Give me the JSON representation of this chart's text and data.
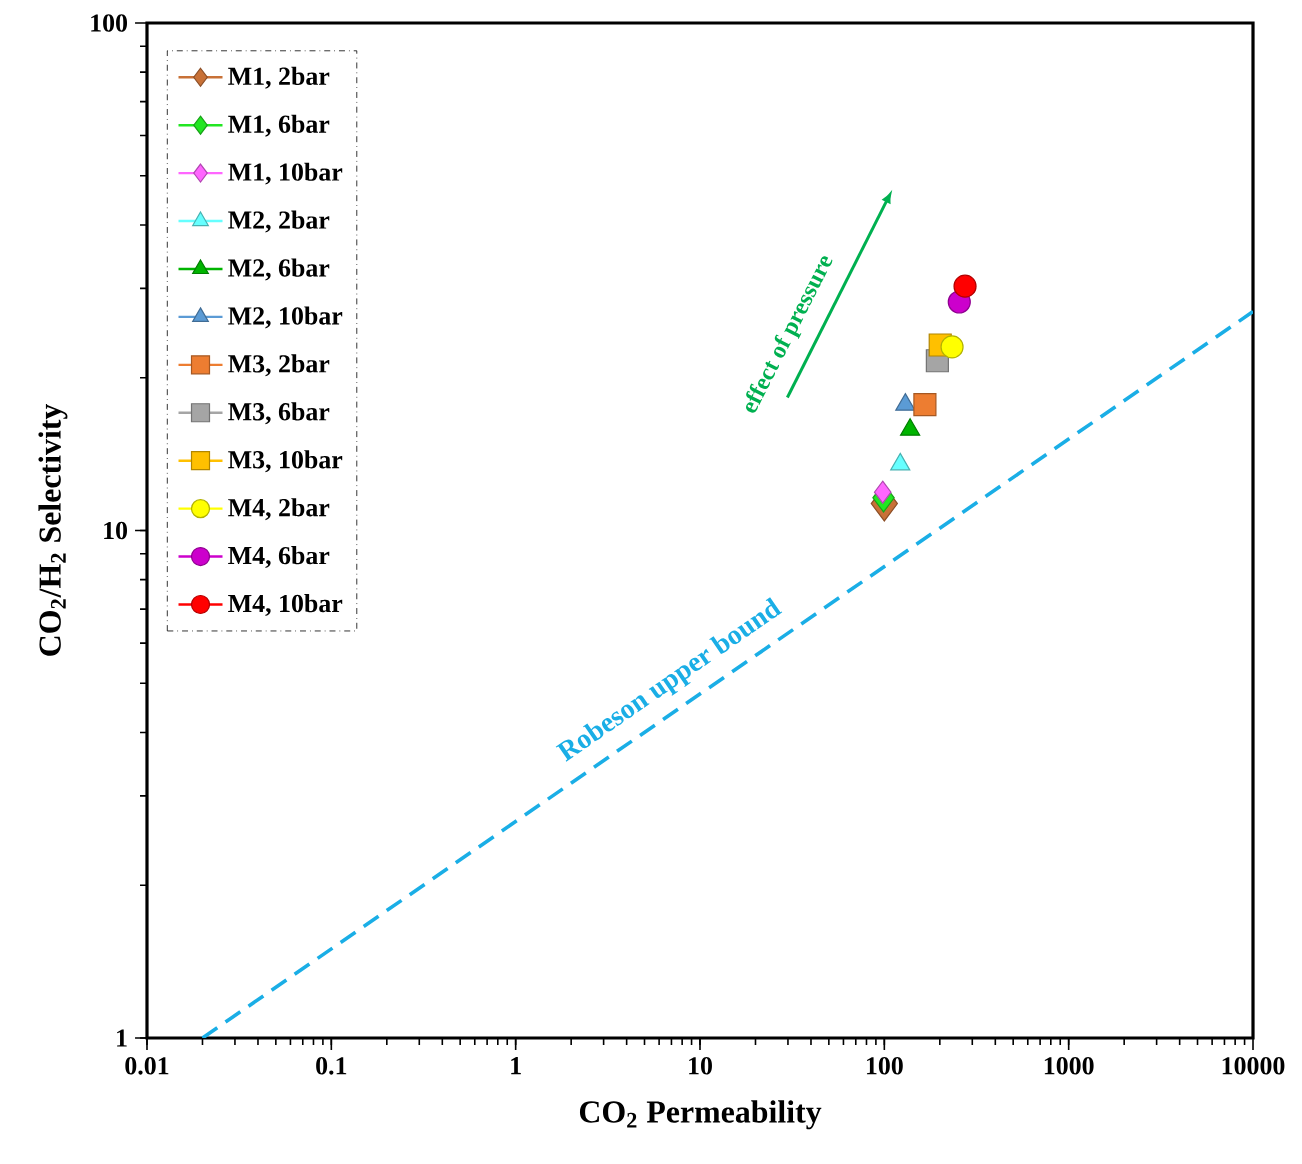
{
  "chart_data": {
    "type": "scatter",
    "xlabel": "CO$_{2}$ Permeability",
    "ylabel": "CO$_{2}$/H$_{2}$ Selectivity",
    "log": "xy",
    "xlim": [
      0.01,
      10000
    ],
    "ylim": [
      1,
      100
    ],
    "xticks": [
      0.01,
      0.1,
      1,
      10,
      100,
      1000,
      10000
    ],
    "yticks": [
      1,
      10,
      100
    ],
    "legend": "top left",
    "grid": false,
    "annotations": [
      "effect of pressure"
    ],
    "series": [
      {
        "name": "M1, 2bar",
        "color": "#c87137",
        "marker": "diamond",
        "x": [
          100
        ],
        "values": [
          11.3
        ]
      },
      {
        "name": "M1, 6bar",
        "color": "#22e622",
        "marker": "diamond",
        "x": [
          99
        ],
        "values": [
          11.6
        ]
      },
      {
        "name": "M1, 10bar",
        "color": "#ff66ff",
        "marker": "diamond",
        "x": [
          98
        ],
        "values": [
          11.9
        ]
      },
      {
        "name": "M2, 2bar",
        "color": "#66ffff",
        "marker": "triangle",
        "x": [
          122
        ],
        "values": [
          13.5
        ]
      },
      {
        "name": "M2, 6bar",
        "color": "#00b400",
        "marker": "triangle",
        "x": [
          138
        ],
        "values": [
          15.8
        ]
      },
      {
        "name": "M2, 10bar",
        "color": "#5b9bd5",
        "marker": "triangle",
        "x": [
          130
        ],
        "values": [
          17.7
        ]
      },
      {
        "name": "M3, 2bar",
        "color": "#ed7d31",
        "marker": "square",
        "x": [
          166
        ],
        "values": [
          17.7
        ]
      },
      {
        "name": "M3, 6bar",
        "color": "#a5a5a5",
        "marker": "square",
        "x": [
          194
        ],
        "values": [
          21.6
        ]
      },
      {
        "name": "M3, 10bar",
        "color": "#ffc000",
        "marker": "square",
        "x": [
          201
        ],
        "values": [
          23.2
        ]
      },
      {
        "name": "M4, 2bar",
        "color": "#ffff00",
        "marker": "circle",
        "x": [
          233
        ],
        "values": [
          23.0
        ]
      },
      {
        "name": "M4, 6bar",
        "color": "#cc00cc",
        "marker": "circle",
        "x": [
          255
        ],
        "values": [
          28.2
        ]
      },
      {
        "name": "M4, 10bar",
        "color": "#ff0000",
        "marker": "circle",
        "x": [
          274
        ],
        "values": [
          30.3
        ]
      },
      {
        "name": "Robeson upper bound",
        "type": "line",
        "color": "#1aaee6",
        "line_style": "dashed",
        "marker": "none",
        "x": [
          0.02,
          10000
        ],
        "values": [
          1,
          27
        ]
      }
    ]
  }
}
